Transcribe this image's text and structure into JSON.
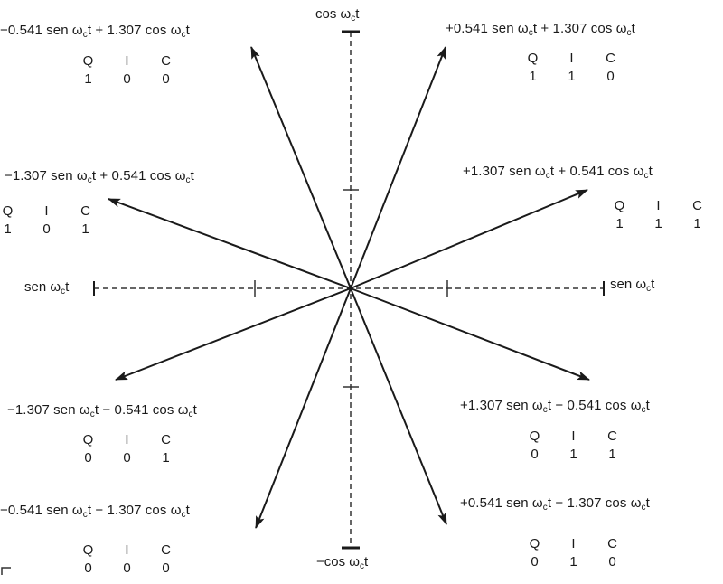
{
  "axes": {
    "cos": {
      "fn": "cos ω",
      "sub": "c",
      "tail": "t"
    },
    "neg_cos": {
      "fn": "−cos ω",
      "sub": "c",
      "tail": "t"
    },
    "sen_left": {
      "fn": "sen ω",
      "sub": "c",
      "tail": "t"
    },
    "sen_right": {
      "fn": "sen ω",
      "sub": "c",
      "tail": "t"
    }
  },
  "code_headers": [
    "Q",
    "I",
    "C"
  ],
  "phasors": [
    {
      "id": "p1",
      "eq_a": "−0.541 sen ω",
      "eq_b": "t + 1.307 cos ω",
      "eq_c": "t",
      "sub": "c",
      "code": [
        "1",
        "0",
        "0"
      ]
    },
    {
      "id": "p2",
      "eq_a": "+0.541 sen ω",
      "eq_b": "t + 1.307 cos ω",
      "eq_c": "t",
      "sub": "c",
      "code": [
        "1",
        "1",
        "0"
      ]
    },
    {
      "id": "p3",
      "eq_a": "−1.307 sen ω",
      "eq_b": "t + 0.541 cos ω",
      "eq_c": "t",
      "sub": "c",
      "code": [
        "1",
        "0",
        "1"
      ]
    },
    {
      "id": "p4",
      "eq_a": "+1.307 sen ω",
      "eq_b": "t + 0.541 cos ω",
      "eq_c": "t",
      "sub": "c",
      "code": [
        "1",
        "1",
        "1"
      ]
    },
    {
      "id": "p5",
      "eq_a": "−1.307 sen ω",
      "eq_b": "t − 0.541 cos ω",
      "eq_c": "t",
      "sub": "c",
      "code": [
        "0",
        "0",
        "1"
      ]
    },
    {
      "id": "p6",
      "eq_a": "+1.307 sen ω",
      "eq_b": "t − 0.541 cos ω",
      "eq_c": "t",
      "sub": "c",
      "code": [
        "0",
        "1",
        "1"
      ]
    },
    {
      "id": "p7",
      "eq_a": "−0.541 sen ω",
      "eq_b": "t − 1.307 cos ω",
      "eq_c": "t",
      "sub": "c",
      "code": [
        "0",
        "0",
        "0"
      ]
    },
    {
      "id": "p8",
      "eq_a": "+0.541 sen ω",
      "eq_b": "t − 1.307 cos ω",
      "eq_c": "t",
      "sub": "c",
      "code": [
        "0",
        "1",
        "0"
      ]
    }
  ]
}
